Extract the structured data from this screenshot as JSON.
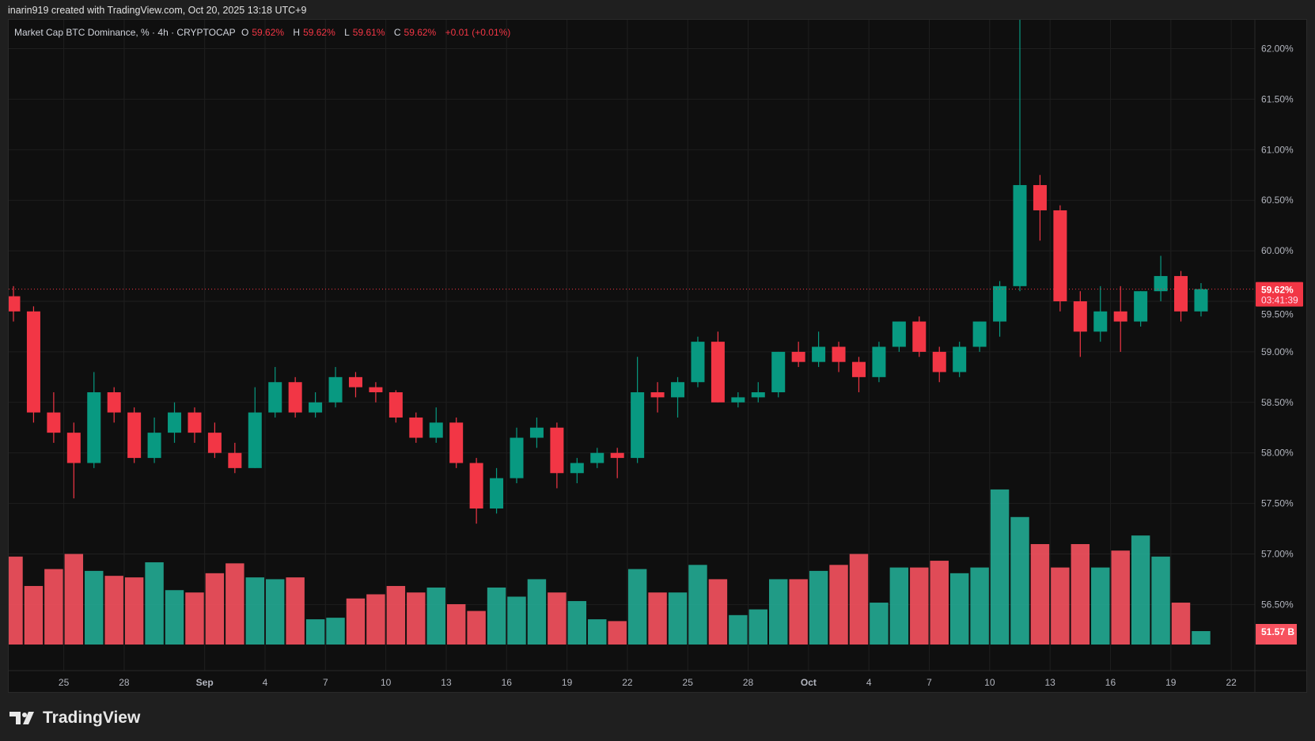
{
  "credit": "inarin919 created with TradingView.com, Oct 20, 2025 13:18 UTC+9",
  "legend": {
    "symbol": "Market Cap BTC Dominance, % · 4h · CRYPTOCAP",
    "o_label": "O",
    "o": "59.62%",
    "h_label": "H",
    "h": "59.62%",
    "l_label": "L",
    "l": "59.61%",
    "c_label": "C",
    "c": "59.62%",
    "change": "+0.01 (+0.01%)"
  },
  "price_badge": {
    "value": "59.62%",
    "countdown": "03:41:39"
  },
  "volume_badge": "51.57 B",
  "brand": "TradingView",
  "colors": {
    "up": "#089981",
    "down": "#f23645",
    "vol_up": "#22ab94",
    "vol_down": "#f7525f",
    "background": "#0f0f0f"
  },
  "chart_data": {
    "type": "candlestick",
    "title": "Market Cap BTC Dominance, % · 4h · CRYPTOCAP",
    "ylim": [
      56.5,
      62.0
    ],
    "y_ticks": [
      "62.00%",
      "61.50%",
      "61.00%",
      "60.50%",
      "60.00%",
      "59.50%",
      "59.00%",
      "58.50%",
      "58.00%",
      "57.50%",
      "57.00%",
      "56.50%"
    ],
    "y_tick_values": [
      62,
      61.5,
      61,
      60.5,
      60,
      59.5,
      59,
      58.5,
      58,
      57.5,
      57,
      56.5
    ],
    "x_ticks": [
      {
        "label": "25",
        "date": "2025-08-25"
      },
      {
        "label": "28",
        "date": "2025-08-28"
      },
      {
        "label": "Sep",
        "date": "2025-09-01"
      },
      {
        "label": "4",
        "date": "2025-09-04"
      },
      {
        "label": "7",
        "date": "2025-09-07"
      },
      {
        "label": "10",
        "date": "2025-09-10"
      },
      {
        "label": "13",
        "date": "2025-09-13"
      },
      {
        "label": "16",
        "date": "2025-09-16"
      },
      {
        "label": "19",
        "date": "2025-09-19"
      },
      {
        "label": "22",
        "date": "2025-09-22"
      },
      {
        "label": "25",
        "date": "2025-09-25"
      },
      {
        "label": "28",
        "date": "2025-09-28"
      },
      {
        "label": "Oct",
        "date": "2025-10-01"
      },
      {
        "label": "4",
        "date": "2025-10-04"
      },
      {
        "label": "7",
        "date": "2025-10-07"
      },
      {
        "label": "10",
        "date": "2025-10-10"
      },
      {
        "label": "13",
        "date": "2025-10-13"
      },
      {
        "label": "16",
        "date": "2025-10-16"
      },
      {
        "label": "19",
        "date": "2025-10-19"
      },
      {
        "label": "22",
        "date": "2025-10-22"
      }
    ],
    "last_price": 59.62,
    "grid": true,
    "columns": [
      "date",
      "open",
      "high",
      "low",
      "close",
      "volume_B"
    ],
    "candles": [
      [
        "2025-08-22",
        59.55,
        59.65,
        59.3,
        59.4,
        338
      ],
      [
        "2025-08-23",
        59.4,
        59.45,
        58.3,
        58.4,
        225
      ],
      [
        "2025-08-24",
        58.4,
        58.6,
        58.1,
        58.2,
        290
      ],
      [
        "2025-08-25",
        58.2,
        58.3,
        57.55,
        57.9,
        348
      ],
      [
        "2025-08-26",
        57.9,
        58.8,
        57.85,
        58.6,
        283
      ],
      [
        "2025-08-27",
        58.6,
        58.65,
        58.3,
        58.4,
        264
      ],
      [
        "2025-08-28",
        58.4,
        58.45,
        57.9,
        57.95,
        258
      ],
      [
        "2025-08-29",
        57.95,
        58.35,
        57.9,
        58.2,
        316
      ],
      [
        "2025-08-30",
        58.2,
        58.5,
        58.1,
        58.4,
        209
      ],
      [
        "2025-08-31",
        58.4,
        58.45,
        58.1,
        58.2,
        200
      ],
      [
        "2025-09-01",
        58.2,
        58.3,
        57.95,
        58.0,
        274
      ],
      [
        "2025-09-02",
        58.0,
        58.1,
        57.8,
        57.85,
        312
      ],
      [
        "2025-09-03",
        57.85,
        58.65,
        57.85,
        58.4,
        258
      ],
      [
        "2025-09-04",
        58.4,
        58.85,
        58.35,
        58.7,
        251
      ],
      [
        "2025-09-05",
        58.7,
        58.75,
        58.35,
        58.4,
        258
      ],
      [
        "2025-09-06",
        58.4,
        58.6,
        58.35,
        58.5,
        97
      ],
      [
        "2025-09-07",
        58.5,
        58.85,
        58.45,
        58.75,
        103
      ],
      [
        "2025-09-08",
        58.75,
        58.8,
        58.55,
        58.65,
        177
      ],
      [
        "2025-09-09",
        58.65,
        58.7,
        58.5,
        58.6,
        193
      ],
      [
        "2025-09-10",
        58.6,
        58.62,
        58.3,
        58.35,
        225
      ],
      [
        "2025-09-11",
        58.35,
        58.4,
        58.1,
        58.15,
        200
      ],
      [
        "2025-09-12",
        58.15,
        58.45,
        58.1,
        58.3,
        219
      ],
      [
        "2025-09-13",
        58.3,
        58.35,
        57.85,
        57.9,
        155
      ],
      [
        "2025-09-14",
        57.9,
        57.95,
        57.3,
        57.45,
        129
      ],
      [
        "2025-09-15",
        57.45,
        57.85,
        57.4,
        57.75,
        219
      ],
      [
        "2025-09-16",
        57.75,
        58.25,
        57.7,
        58.15,
        184
      ],
      [
        "2025-09-17",
        58.15,
        58.35,
        58.05,
        58.25,
        251
      ],
      [
        "2025-09-18",
        58.25,
        58.3,
        57.65,
        57.8,
        200
      ],
      [
        "2025-09-19",
        57.8,
        57.95,
        57.7,
        57.9,
        167
      ],
      [
        "2025-09-20",
        57.9,
        58.05,
        57.85,
        58.0,
        97
      ],
      [
        "2025-09-21",
        58.0,
        58.05,
        57.75,
        57.95,
        90
      ],
      [
        "2025-09-22",
        57.95,
        58.95,
        57.9,
        58.6,
        290
      ],
      [
        "2025-09-23",
        58.6,
        58.7,
        58.4,
        58.55,
        200
      ],
      [
        "2025-09-24",
        58.55,
        58.75,
        58.35,
        58.7,
        200
      ],
      [
        "2025-09-25",
        58.7,
        59.15,
        58.65,
        59.1,
        306
      ],
      [
        "2025-09-26",
        59.1,
        59.2,
        58.5,
        58.5,
        251
      ],
      [
        "2025-09-27",
        58.5,
        58.6,
        58.45,
        58.55,
        113
      ],
      [
        "2025-09-28",
        58.55,
        58.7,
        58.5,
        58.6,
        135
      ],
      [
        "2025-09-29",
        58.6,
        59.0,
        58.55,
        59.0,
        251
      ],
      [
        "2025-09-30",
        59.0,
        59.1,
        58.85,
        58.9,
        251
      ],
      [
        "2025-10-01",
        58.9,
        59.2,
        58.85,
        59.05,
        283
      ],
      [
        "2025-10-02",
        59.05,
        59.1,
        58.8,
        58.9,
        306
      ],
      [
        "2025-10-03",
        58.9,
        58.95,
        58.6,
        58.75,
        348
      ],
      [
        "2025-10-04",
        58.75,
        59.1,
        58.7,
        59.05,
        161
      ],
      [
        "2025-10-05",
        59.05,
        59.3,
        59.0,
        59.3,
        296
      ],
      [
        "2025-10-06",
        59.3,
        59.35,
        58.95,
        59.0,
        296
      ],
      [
        "2025-10-07",
        59.0,
        59.05,
        58.7,
        58.8,
        322
      ],
      [
        "2025-10-08",
        58.8,
        59.1,
        58.75,
        59.05,
        274
      ],
      [
        "2025-10-09",
        59.05,
        59.3,
        59.0,
        59.3,
        296
      ],
      [
        "2025-10-10",
        59.3,
        59.7,
        59.15,
        59.65,
        596
      ],
      [
        "2025-10-11",
        59.65,
        62.3,
        59.6,
        60.65,
        490
      ],
      [
        "2025-10-12",
        60.65,
        60.75,
        60.1,
        60.4,
        386
      ],
      [
        "2025-10-13",
        60.4,
        60.45,
        59.4,
        59.5,
        296
      ],
      [
        "2025-10-14",
        59.5,
        59.6,
        58.95,
        59.2,
        386
      ],
      [
        "2025-10-15",
        59.2,
        59.65,
        59.1,
        59.4,
        296
      ],
      [
        "2025-10-16",
        59.4,
        59.65,
        59.0,
        59.3,
        361
      ],
      [
        "2025-10-17",
        59.3,
        59.6,
        59.25,
        59.6,
        419
      ],
      [
        "2025-10-18",
        59.6,
        59.95,
        59.5,
        59.75,
        338
      ],
      [
        "2025-10-19",
        59.75,
        59.8,
        59.3,
        59.4,
        161
      ],
      [
        "2025-10-20",
        59.4,
        59.68,
        59.35,
        59.62,
        51.57
      ]
    ]
  }
}
